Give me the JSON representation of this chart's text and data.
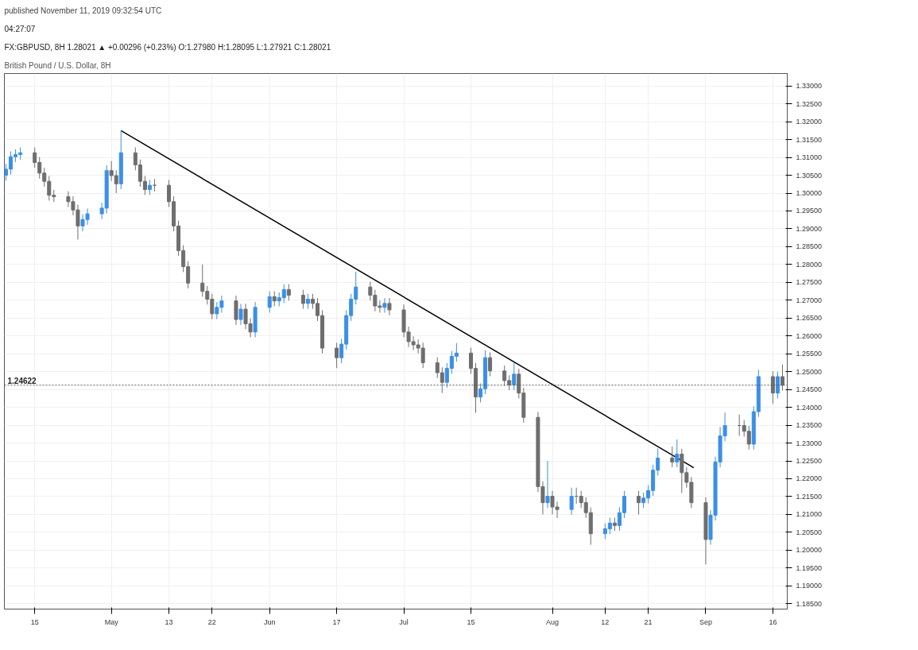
{
  "chart_data": {
    "type": "candlestick",
    "title": "British Pound / U.S. Dollar, 8H",
    "subtitle": "published November 11, 2019 09:32:54 UTC",
    "annotations": [
      "FX:GBPUSD, 8H  1.28021 ▲ +0.00296 (+0.23%)  O:1.27980  H:1.28095  L:1.27921  C:1.28021",
      "04:27:07"
    ],
    "ref_lines": [
      {
        "axis": "y",
        "value": 1.24622,
        "label": "1.24622",
        "color": "#555555",
        "line_style": "dotted"
      }
    ],
    "x": [
      "2019-04-09",
      "2019-04-10",
      "2019-04-11",
      "2019-04-12",
      "2019-04-15",
      "2019-04-16",
      "2019-04-17",
      "2019-04-18",
      "2019-04-19",
      "2019-04-22",
      "2019-04-23",
      "2019-04-24",
      "2019-04-25",
      "2019-04-26",
      "2019-04-29",
      "2019-04-30",
      "2019-05-01",
      "2019-05-02",
      "2019-05-03",
      "2019-05-06",
      "2019-05-07",
      "2019-05-08",
      "2019-05-09",
      "2019-05-10",
      "2019-05-13",
      "2019-05-14",
      "2019-05-15",
      "2019-05-16",
      "2019-05-17",
      "2019-05-20",
      "2019-05-21",
      "2019-05-22",
      "2019-05-23",
      "2019-05-24",
      "2019-05-27",
      "2019-05-28",
      "2019-05-29",
      "2019-05-30",
      "2019-05-31",
      "2019-06-03",
      "2019-06-04",
      "2019-06-05",
      "2019-06-06",
      "2019-06-07",
      "2019-06-10",
      "2019-06-11",
      "2019-06-12",
      "2019-06-13",
      "2019-06-14",
      "2019-06-17",
      "2019-06-18",
      "2019-06-19",
      "2019-06-20",
      "2019-06-21",
      "2019-06-24",
      "2019-06-25",
      "2019-06-26",
      "2019-06-27",
      "2019-06-28",
      "2019-07-01",
      "2019-07-02",
      "2019-07-03",
      "2019-07-04",
      "2019-07-05",
      "2019-07-08",
      "2019-07-09",
      "2019-07-10",
      "2019-07-11",
      "2019-07-12",
      "2019-07-15",
      "2019-07-16",
      "2019-07-17",
      "2019-07-18",
      "2019-07-19",
      "2019-07-22",
      "2019-07-23",
      "2019-07-24",
      "2019-07-25",
      "2019-07-26",
      "2019-07-29",
      "2019-07-30",
      "2019-07-31",
      "2019-08-01",
      "2019-08-02",
      "2019-08-05",
      "2019-08-06",
      "2019-08-07",
      "2019-08-08",
      "2019-08-09",
      "2019-08-12",
      "2019-08-13",
      "2019-08-14",
      "2019-08-15",
      "2019-08-16",
      "2019-08-19",
      "2019-08-20",
      "2019-08-21",
      "2019-08-22",
      "2019-08-23",
      "2019-08-26",
      "2019-08-27",
      "2019-08-28",
      "2019-08-29",
      "2019-08-30",
      "2019-09-02",
      "2019-09-03",
      "2019-09-04",
      "2019-09-05",
      "2019-09-06",
      "2019-09-09",
      "2019-09-10",
      "2019-09-11",
      "2019-09-12",
      "2019-09-13",
      "2019-09-16",
      "2019-09-17",
      "2019-09-18"
    ],
    "ohlc": [
      [
        1.305,
        1.3082,
        1.3035,
        1.3067
      ],
      [
        1.3067,
        1.3117,
        1.3052,
        1.3102
      ],
      [
        1.3102,
        1.3123,
        1.3087,
        1.3108
      ],
      [
        1.3108,
        1.3128,
        1.3093,
        1.3113
      ],
      [
        1.3113,
        1.3128,
        1.3071,
        1.3086
      ],
      [
        1.3086,
        1.3101,
        1.3041,
        1.3056
      ],
      [
        1.3056,
        1.3071,
        1.3018,
        1.3033
      ],
      [
        1.3033,
        1.3048,
        1.2979,
        1.2994
      ],
      [
        1.2994,
        1.3009,
        1.2975,
        1.299
      ],
      [
        1.299,
        1.3005,
        1.2961,
        1.2976
      ],
      [
        1.2976,
        1.2991,
        1.2938,
        1.2953
      ],
      [
        1.2953,
        1.2968,
        1.287,
        1.2908
      ],
      [
        1.2908,
        1.2941,
        1.2893,
        1.2926
      ],
      [
        1.2926,
        1.2957,
        1.2911,
        1.2942
      ],
      [
        1.2942,
        1.2973,
        1.2927,
        1.2958
      ],
      [
        1.2958,
        1.3078,
        1.2943,
        1.3063
      ],
      [
        1.3063,
        1.309,
        1.3034,
        1.3049
      ],
      [
        1.3049,
        1.3064,
        1.3,
        1.3026
      ],
      [
        1.3026,
        1.3175,
        1.3011,
        1.3113
      ],
      [
        1.3113,
        1.3128,
        1.3064,
        1.3079
      ],
      [
        1.3079,
        1.3094,
        1.3018,
        1.3033
      ],
      [
        1.3033,
        1.3048,
        1.2995,
        1.301
      ],
      [
        1.301,
        1.3037,
        1.2995,
        1.3022
      ],
      [
        1.3022,
        1.304,
        1.3005,
        1.3022
      ],
      [
        1.3022,
        1.3037,
        1.2961,
        1.2976
      ],
      [
        1.2976,
        1.2991,
        1.2893,
        1.2908
      ],
      [
        1.2908,
        1.2923,
        1.2824,
        1.2839
      ],
      [
        1.2839,
        1.2854,
        1.2779,
        1.2794
      ],
      [
        1.2794,
        1.2809,
        1.2733,
        1.2748
      ],
      [
        1.2748,
        1.28,
        1.271,
        1.2725
      ],
      [
        1.2725,
        1.274,
        1.2688,
        1.2703
      ],
      [
        1.2703,
        1.2718,
        1.2647,
        1.2662
      ],
      [
        1.2662,
        1.2695,
        1.2647,
        1.268
      ],
      [
        1.268,
        1.2713,
        1.2665,
        1.2698
      ],
      [
        1.2698,
        1.2713,
        1.2631,
        1.2646
      ],
      [
        1.2646,
        1.269,
        1.2631,
        1.2675
      ],
      [
        1.2675,
        1.269,
        1.2619,
        1.2634
      ],
      [
        1.2634,
        1.2649,
        1.2596,
        1.2611
      ],
      [
        1.2611,
        1.2695,
        1.2596,
        1.268
      ],
      [
        1.268,
        1.2725,
        1.2665,
        1.271
      ],
      [
        1.271,
        1.2725,
        1.2683,
        1.2698
      ],
      [
        1.2698,
        1.2722,
        1.2683,
        1.2707
      ],
      [
        1.2707,
        1.2745,
        1.2692,
        1.273
      ],
      [
        1.273,
        1.2745,
        1.2699,
        1.2714
      ],
      [
        1.2714,
        1.2729,
        1.2676,
        1.2691
      ],
      [
        1.2691,
        1.2718,
        1.2676,
        1.2703
      ],
      [
        1.2703,
        1.2718,
        1.2676,
        1.2691
      ],
      [
        1.2691,
        1.2706,
        1.2642,
        1.2657
      ],
      [
        1.2657,
        1.2672,
        1.2551,
        1.2566
      ],
      [
        1.2566,
        1.2581,
        1.251,
        1.2539
      ],
      [
        1.2539,
        1.2592,
        1.2524,
        1.2577
      ],
      [
        1.2577,
        1.2672,
        1.2562,
        1.2657
      ],
      [
        1.2657,
        1.2718,
        1.2642,
        1.2703
      ],
      [
        1.2703,
        1.278,
        1.2688,
        1.2737
      ],
      [
        1.2737,
        1.2752,
        1.2699,
        1.2714
      ],
      [
        1.2714,
        1.2729,
        1.2669,
        1.2684
      ],
      [
        1.2684,
        1.2699,
        1.2665,
        1.268
      ],
      [
        1.268,
        1.2706,
        1.2665,
        1.2691
      ],
      [
        1.2691,
        1.2706,
        1.2658,
        1.2673
      ],
      [
        1.2673,
        1.2688,
        1.2596,
        1.2611
      ],
      [
        1.2611,
        1.2626,
        1.2569,
        1.2584
      ],
      [
        1.2584,
        1.2599,
        1.256,
        1.2575
      ],
      [
        1.2575,
        1.259,
        1.2551,
        1.2566
      ],
      [
        1.2566,
        1.2581,
        1.251,
        1.2525
      ],
      [
        1.2525,
        1.254,
        1.2482,
        1.2497
      ],
      [
        1.2497,
        1.2512,
        1.244,
        1.247
      ],
      [
        1.247,
        1.2524,
        1.2455,
        1.2509
      ],
      [
        1.2509,
        1.2558,
        1.2494,
        1.2543
      ],
      [
        1.2543,
        1.258,
        1.2528,
        1.2552
      ],
      [
        1.2552,
        1.2567,
        1.2494,
        1.2509
      ],
      [
        1.2509,
        1.2524,
        1.2385,
        1.2429
      ],
      [
        1.2429,
        1.2467,
        1.2414,
        1.2452
      ],
      [
        1.2452,
        1.256,
        1.2437,
        1.2539
      ],
      [
        1.2539,
        1.2554,
        1.2487,
        1.2502
      ],
      [
        1.2502,
        1.2517,
        1.246,
        1.2475
      ],
      [
        1.2475,
        1.249,
        1.2448,
        1.2463
      ],
      [
        1.2463,
        1.2525,
        1.2448,
        1.2493
      ],
      [
        1.2493,
        1.2508,
        1.2425,
        1.244
      ],
      [
        1.244,
        1.2455,
        1.2357,
        1.2372
      ],
      [
        1.2372,
        1.2387,
        1.2163,
        1.2178
      ],
      [
        1.2178,
        1.2193,
        1.21,
        1.2133
      ],
      [
        1.2133,
        1.225,
        1.2118,
        1.2151
      ],
      [
        1.2151,
        1.2166,
        1.21,
        1.2121
      ],
      [
        1.2121,
        1.2136,
        1.209,
        1.2114
      ],
      [
        1.2114,
        1.2175,
        1.2099,
        1.2151
      ],
      [
        1.2151,
        1.2175,
        1.213,
        1.2151
      ],
      [
        1.2151,
        1.2166,
        1.2118,
        1.2133
      ],
      [
        1.2133,
        1.2148,
        1.209,
        1.2105
      ],
      [
        1.2105,
        1.212,
        1.2015,
        1.2046
      ],
      [
        1.2046,
        1.2075,
        1.2031,
        1.206
      ],
      [
        1.206,
        1.2091,
        1.2045,
        1.2076
      ],
      [
        1.2076,
        1.2091,
        1.2054,
        1.2069
      ],
      [
        1.2069,
        1.212,
        1.2054,
        1.2105
      ],
      [
        1.2105,
        1.2166,
        1.209,
        1.2151
      ],
      [
        1.2151,
        1.2166,
        1.21,
        1.2133
      ],
      [
        1.2133,
        1.2161,
        1.2118,
        1.2146
      ],
      [
        1.2146,
        1.2182,
        1.2131,
        1.2167
      ],
      [
        1.2167,
        1.2239,
        1.2152,
        1.2224
      ],
      [
        1.2224,
        1.2285,
        1.2209,
        1.2258
      ],
      [
        1.2258,
        1.229,
        1.2232,
        1.2247
      ],
      [
        1.2247,
        1.231,
        1.2232,
        1.2269
      ],
      [
        1.2269,
        1.2284,
        1.216,
        1.2217
      ],
      [
        1.2217,
        1.2232,
        1.2175,
        1.219
      ],
      [
        1.219,
        1.2205,
        1.2118,
        1.2133
      ],
      [
        1.2133,
        1.2148,
        1.196,
        1.203
      ],
      [
        1.203,
        1.2113,
        1.2015,
        1.2098
      ],
      [
        1.2098,
        1.2262,
        1.2083,
        1.2247
      ],
      [
        1.2247,
        1.2345,
        1.2232,
        1.232
      ],
      [
        1.232,
        1.2385,
        1.2305,
        1.2349
      ],
      [
        1.2349,
        1.238,
        1.232,
        1.2349
      ],
      [
        1.2349,
        1.2364,
        1.2318,
        1.2333
      ],
      [
        1.2333,
        1.2348,
        1.2282,
        1.2297
      ],
      [
        1.2297,
        1.2403,
        1.2282,
        1.2388
      ],
      [
        1.2388,
        1.2505,
        1.2373,
        1.2486
      ],
      [
        1.2486,
        1.2501,
        1.241,
        1.244
      ],
      [
        1.244,
        1.25,
        1.2425,
        1.2486
      ],
      [
        1.2486,
        1.252,
        1.2447,
        1.2462
      ]
    ],
    "colors": [
      "#3b8fe6",
      "#3b8fe6",
      "#3b8fe6",
      "#3b8fe6",
      "#6e6e6e",
      "#6e6e6e",
      "#6e6e6e",
      "#6e6e6e",
      "#6e6e6e",
      "#6e6e6e",
      "#6e6e6e",
      "#6e6e6e",
      "#3b8fe6",
      "#3b8fe6",
      "#3b8fe6",
      "#3b8fe6",
      "#6e6e6e",
      "#6e6e6e",
      "#3b8fe6",
      "#6e6e6e",
      "#6e6e6e",
      "#6e6e6e",
      "#3b8fe6",
      "#6e6e6e",
      "#6e6e6e",
      "#6e6e6e",
      "#6e6e6e",
      "#6e6e6e",
      "#6e6e6e",
      "#6e6e6e",
      "#6e6e6e",
      "#6e6e6e",
      "#3b8fe6",
      "#3b8fe6",
      "#6e6e6e",
      "#3b8fe6",
      "#6e6e6e",
      "#6e6e6e",
      "#3b8fe6",
      "#3b8fe6",
      "#6e6e6e",
      "#3b8fe6",
      "#3b8fe6",
      "#6e6e6e",
      "#6e6e6e",
      "#3b8fe6",
      "#6e6e6e",
      "#6e6e6e",
      "#6e6e6e",
      "#6e6e6e",
      "#3b8fe6",
      "#3b8fe6",
      "#3b8fe6",
      "#3b8fe6",
      "#6e6e6e",
      "#6e6e6e",
      "#6e6e6e",
      "#3b8fe6",
      "#6e6e6e",
      "#6e6e6e",
      "#6e6e6e",
      "#6e6e6e",
      "#6e6e6e",
      "#6e6e6e",
      "#6e6e6e",
      "#6e6e6e",
      "#3b8fe6",
      "#3b8fe6",
      "#3b8fe6",
      "#6e6e6e",
      "#6e6e6e",
      "#3b8fe6",
      "#3b8fe6",
      "#6e6e6e",
      "#6e6e6e",
      "#6e6e6e",
      "#3b8fe6",
      "#6e6e6e",
      "#6e6e6e",
      "#6e6e6e",
      "#6e6e6e",
      "#3b8fe6",
      "#6e6e6e",
      "#6e6e6e",
      "#3b8fe6",
      "#6e6e6e",
      "#6e6e6e",
      "#6e6e6e",
      "#6e6e6e",
      "#3b8fe6",
      "#3b8fe6",
      "#6e6e6e",
      "#3b8fe6",
      "#3b8fe6",
      "#6e6e6e",
      "#3b8fe6",
      "#3b8fe6",
      "#3b8fe6",
      "#3b8fe6",
      "#6e6e6e",
      "#3b8fe6",
      "#6e6e6e",
      "#6e6e6e",
      "#6e6e6e",
      "#6e6e6e",
      "#3b8fe6",
      "#3b8fe6",
      "#3b8fe6",
      "#3b8fe6",
      "#6e6e6e",
      "#6e6e6e",
      "#6e6e6e",
      "#3b8fe6",
      "#3b8fe6",
      "#6e6e6e",
      "#3b8fe6",
      "#6e6e6e"
    ],
    "series": [
      {
        "type": "line",
        "x": [
          "2019-05-03",
          "2019-08-30T12:00"
        ],
        "values": [
          1.3175,
          1.2231
        ],
        "color": "#000000"
      }
    ],
    "xlim": [
      "2019-04-08T16:00",
      "2019-09-19"
    ],
    "xticks": [
      {
        "value": "2019-04-15",
        "label": "15"
      },
      {
        "value": "2019-05-01",
        "label": "May"
      },
      {
        "value": "2019-05-13",
        "label": "13"
      },
      {
        "value": "2019-05-22",
        "label": "22"
      },
      {
        "value": "2019-06-03",
        "label": "Jun"
      },
      {
        "value": "2019-06-17",
        "label": "17"
      },
      {
        "value": "2019-07-01",
        "label": "Jul"
      },
      {
        "value": "2019-07-15",
        "label": "15"
      },
      {
        "value": "2019-08-01",
        "label": "Aug"
      },
      {
        "value": "2019-08-12",
        "label": "12"
      },
      {
        "value": "2019-08-21",
        "label": "21"
      },
      {
        "value": "2019-09-02",
        "label": "Sep"
      },
      {
        "value": "2019-09-16",
        "label": "16"
      }
    ],
    "ylim": [
      1.1835,
      1.3335
    ],
    "yticks": [
      {
        "value": 1.185,
        "label": "1.18500"
      },
      {
        "value": 1.19,
        "label": "1.19000"
      },
      {
        "value": 1.195,
        "label": "1.19500"
      },
      {
        "value": 1.2,
        "label": "1.20000"
      },
      {
        "value": 1.205,
        "label": "1.20500"
      },
      {
        "value": 1.21,
        "label": "1.21000"
      },
      {
        "value": 1.215,
        "label": "1.21500"
      },
      {
        "value": 1.22,
        "label": "1.22000"
      },
      {
        "value": 1.225,
        "label": "1.22500"
      },
      {
        "value": 1.23,
        "label": "1.23000"
      },
      {
        "value": 1.235,
        "label": "1.23500"
      },
      {
        "value": 1.24,
        "label": "1.24000"
      },
      {
        "value": 1.245,
        "label": "1.24500"
      },
      {
        "value": 1.25,
        "label": "1.25000"
      },
      {
        "value": 1.255,
        "label": "1.25500"
      },
      {
        "value": 1.26,
        "label": "1.26000"
      },
      {
        "value": 1.265,
        "label": "1.26500"
      },
      {
        "value": 1.27,
        "label": "1.27000"
      },
      {
        "value": 1.275,
        "label": "1.27500"
      },
      {
        "value": 1.28,
        "label": "1.28000"
      },
      {
        "value": 1.285,
        "label": "1.28500"
      },
      {
        "value": 1.29,
        "label": "1.29000"
      },
      {
        "value": 1.295,
        "label": "1.29500"
      },
      {
        "value": 1.3,
        "label": "1.30000"
      },
      {
        "value": 1.305,
        "label": "1.30500"
      },
      {
        "value": 1.31,
        "label": "1.31000"
      },
      {
        "value": 1.315,
        "label": "1.31500"
      },
      {
        "value": 1.32,
        "label": "1.32000"
      },
      {
        "value": 1.325,
        "label": "1.32500"
      },
      {
        "value": 1.33,
        "label": "1.33000"
      }
    ],
    "grid": true
  }
}
